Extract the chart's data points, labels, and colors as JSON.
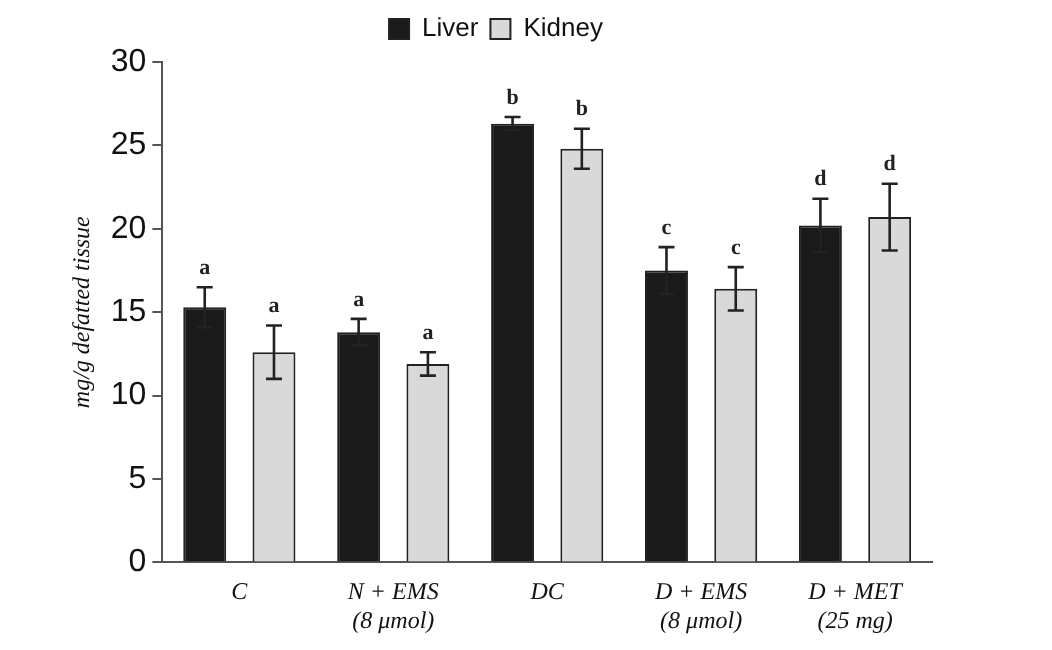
{
  "chart_data": {
    "type": "bar",
    "ylabel": "mg/g defatted tissue",
    "categories": [
      "C",
      "N + EMS\n(8 μmol)",
      "DC",
      "D + EMS\n(8 μmol)",
      "D + MET\n(25 mg)"
    ],
    "series": [
      {
        "name": "Liver",
        "color": "#1a1a1a",
        "values": [
          15.3,
          13.8,
          26.3,
          17.5,
          20.2
        ],
        "errors": [
          1.2,
          0.8,
          0.4,
          1.4,
          1.6
        ],
        "value_labels": [
          "a",
          "a",
          "b",
          "c",
          "d"
        ]
      },
      {
        "name": "Kidney",
        "color": "#d9d9d9",
        "values": [
          12.6,
          11.9,
          24.8,
          16.4,
          20.7
        ],
        "errors": [
          1.6,
          0.7,
          1.2,
          1.3,
          2.0
        ],
        "value_labels": [
          "a",
          "a",
          "b",
          "c",
          "d"
        ]
      }
    ],
    "ylim": [
      0,
      30
    ],
    "yticks": [
      0,
      5,
      10,
      15,
      20,
      25,
      30
    ],
    "grid": false,
    "legend": "top"
  }
}
